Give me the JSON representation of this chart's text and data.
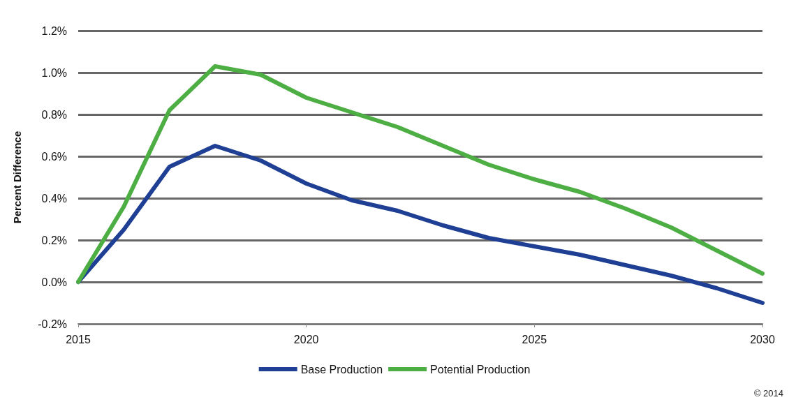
{
  "chart_data": {
    "type": "line",
    "ylabel": "Percent Difference",
    "x": [
      2015,
      2016,
      2017,
      2018,
      2019,
      2020,
      2021,
      2022,
      2023,
      2024,
      2025,
      2026,
      2027,
      2028,
      2029,
      2030
    ],
    "series": [
      {
        "name": "Base Production",
        "color": "#1e3f93",
        "values": [
          0,
          0.25,
          0.55,
          0.65,
          0.58,
          0.47,
          0.39,
          0.34,
          0.27,
          0.21,
          0.17,
          0.13,
          0.08,
          0.03,
          -0.03,
          -0.1
        ]
      },
      {
        "name": "Potential Production",
        "color": "#4dae44",
        "values": [
          0,
          0.36,
          0.82,
          1.03,
          0.99,
          0.88,
          0.81,
          0.74,
          0.65,
          0.56,
          0.49,
          0.43,
          0.35,
          0.26,
          0.15,
          0.04
        ]
      }
    ],
    "xlim": [
      2015,
      2030
    ],
    "xticks": [
      2015,
      2020,
      2025,
      2030
    ],
    "ylim": [
      -0.2,
      1.2
    ],
    "yticks": [
      {
        "value": -0.2,
        "label": "-0.2%"
      },
      {
        "value": 0,
        "label": "0.0%"
      },
      {
        "value": 0.2,
        "label": "0.2%"
      },
      {
        "value": 0.4,
        "label": "0.4%"
      },
      {
        "value": 0.6,
        "label": "0.6%"
      },
      {
        "value": 0.8,
        "label": "0.8%"
      },
      {
        "value": 1.0,
        "label": "1.0%"
      },
      {
        "value": 1.2,
        "label": "1.2%"
      }
    ],
    "grid": "y",
    "legend": "bottom",
    "marker": "none",
    "line_style": "solid",
    "annotations": [
      "© 2014"
    ]
  }
}
